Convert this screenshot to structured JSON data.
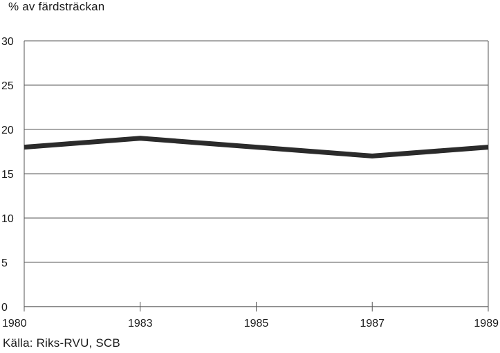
{
  "chart_data": {
    "type": "line",
    "ylabel": "% av färdsträckan",
    "source": "Källa: Riks-RVU, SCB",
    "x": [
      "1980",
      "1983",
      "1985",
      "1987",
      "1989"
    ],
    "ylim": [
      0,
      30
    ],
    "yticks": [
      "0",
      "5",
      "10",
      "15",
      "20",
      "25",
      "30"
    ],
    "grid": true,
    "series": [
      {
        "values": [
          18,
          19,
          18,
          17,
          18
        ]
      }
    ],
    "line_color": "#2b2b2b",
    "grid_color": "#555555"
  }
}
